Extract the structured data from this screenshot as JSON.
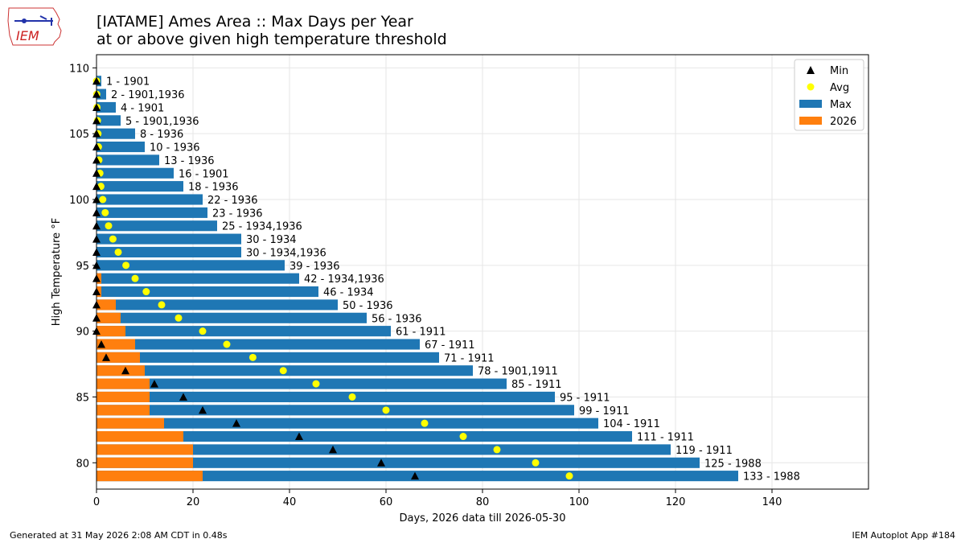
{
  "header": {
    "title_line1": "[IATAME] Ames Area :: Max Days per Year",
    "title_line2": "at or above given high temperature threshold",
    "logo_text": "IEM"
  },
  "footer": {
    "generated": "Generated at 31 May 2026 2:08 AM CDT in 0.48s",
    "app": "IEM Autoplot App #184"
  },
  "colors": {
    "max": "#1f77b4",
    "year2026": "#ff7f0e",
    "avg": "#ffff00",
    "min": "#000000"
  },
  "chart_data": {
    "type": "bar",
    "orientation": "horizontal",
    "xlabel": "Days, 2026 data till 2026-05-30",
    "ylabel": "High Temperature °F",
    "xlim": [
      0,
      160
    ],
    "ylim": [
      78,
      111
    ],
    "xticks": [
      0,
      20,
      40,
      60,
      80,
      100,
      120,
      140
    ],
    "yticks": [
      80,
      85,
      90,
      95,
      100,
      105,
      110
    ],
    "grid": true,
    "legend_position": "top-right",
    "legend": [
      "Min",
      "Avg",
      "Max",
      "2026"
    ],
    "thresholds": [
      79,
      80,
      81,
      82,
      83,
      84,
      85,
      86,
      87,
      88,
      89,
      90,
      91,
      92,
      93,
      94,
      95,
      96,
      97,
      98,
      99,
      100,
      101,
      102,
      103,
      104,
      105,
      106,
      107,
      108,
      109
    ],
    "series": [
      {
        "name": "Max",
        "values": [
          133,
          125,
          119,
          111,
          104,
          99,
          95,
          85,
          78,
          71,
          67,
          61,
          56,
          50,
          46,
          42,
          39,
          30,
          30,
          25,
          23,
          22,
          18,
          16,
          13,
          10,
          8,
          5,
          4,
          2,
          1
        ]
      },
      {
        "name": "2026",
        "values": [
          22,
          20,
          20,
          18,
          14,
          11,
          11,
          11,
          10,
          9,
          8,
          6,
          5,
          4,
          1,
          1,
          0,
          0,
          0,
          0,
          0,
          0,
          0,
          0,
          0,
          0,
          0,
          0,
          0,
          0,
          0
        ]
      },
      {
        "name": "Avg",
        "values": [
          98,
          91,
          83,
          76,
          68,
          60,
          53,
          45.5,
          38.7,
          32.4,
          27,
          22,
          17,
          13.5,
          10.3,
          8,
          6.1,
          4.5,
          3.4,
          2.5,
          1.8,
          1.3,
          0.9,
          0.7,
          0.5,
          0.4,
          0.3,
          0.2,
          0.1,
          0.05,
          0.02
        ]
      },
      {
        "name": "Min",
        "values": [
          66,
          59,
          49,
          42,
          29,
          22,
          18,
          12,
          6,
          2,
          1,
          0,
          0,
          0,
          0,
          0,
          0,
          0,
          0,
          0,
          0,
          0,
          0,
          0,
          0,
          0,
          0,
          0,
          0,
          0,
          0
        ]
      }
    ],
    "bar_labels": [
      "133 - 1988",
      "125 - 1988",
      "119 - 1911",
      "111 - 1911",
      "104 - 1911",
      "99 - 1911",
      "95 - 1911",
      "85 - 1911",
      "78 - 1901,1911",
      "71 - 1911",
      "67 - 1911",
      "61 - 1911",
      "56 - 1936",
      "50 - 1936",
      "46 - 1934",
      "42 - 1934,1936",
      "39 - 1936",
      "30 - 1934,1936",
      "30 - 1934",
      "25 - 1934,1936",
      "23 - 1936",
      "22 - 1936",
      "18 - 1936",
      "16 - 1901",
      "13 - 1936",
      "10 - 1936",
      "8 - 1936",
      "5 - 1901,1936",
      "4 - 1901",
      "2 - 1901,1936",
      "1 - 1901"
    ]
  }
}
